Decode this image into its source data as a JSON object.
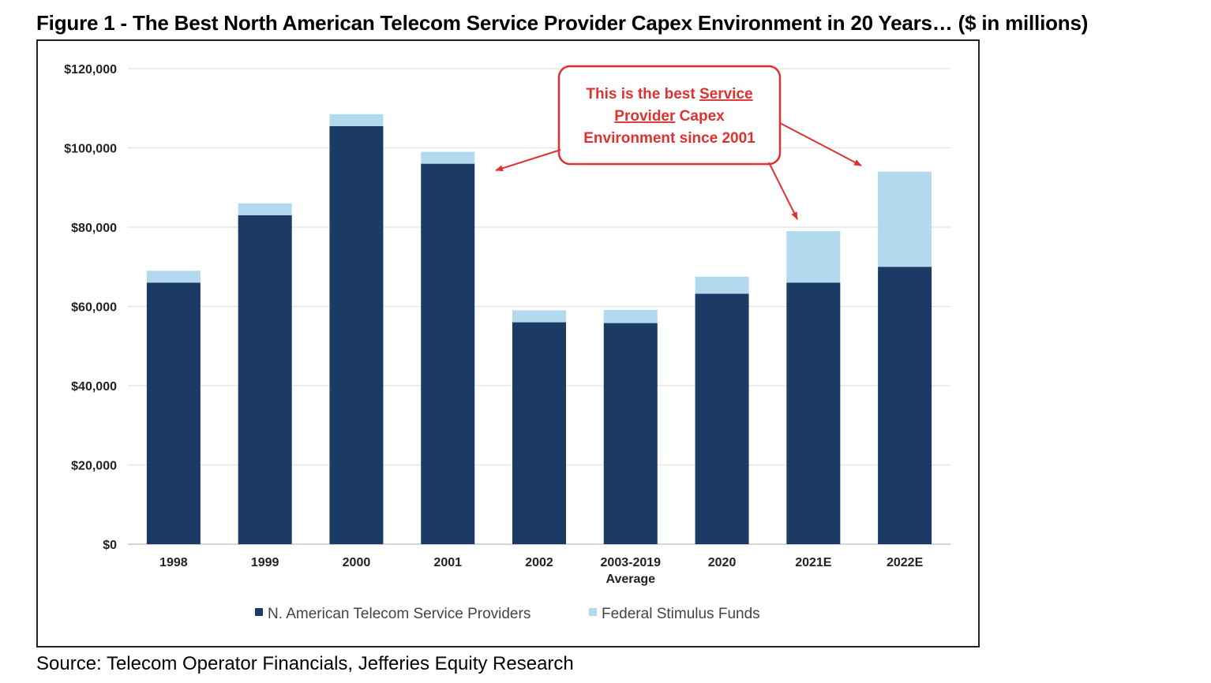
{
  "title": "Figure 1 - The Best North American Telecom Service Provider Capex Environment in 20 Years… ($ in millions)",
  "source": "Source: Telecom Operator Financials, Jefferies Equity Research",
  "chart_data": {
    "type": "bar",
    "stacked": true,
    "categories": [
      "1998",
      "1999",
      "2000",
      "2001",
      "2002",
      "2003-2019 Average",
      "2020",
      "2021E",
      "2022E"
    ],
    "category_lines": [
      [
        "1998"
      ],
      [
        "1999"
      ],
      [
        "2000"
      ],
      [
        "2001"
      ],
      [
        "2002"
      ],
      [
        "2003-2019",
        "Average"
      ],
      [
        "2020"
      ],
      [
        "2021E"
      ],
      [
        "2022E"
      ]
    ],
    "series": [
      {
        "name": "N. American Telecom Service Providers",
        "color": "#1b3a66",
        "values": [
          66000,
          83000,
          105500,
          96000,
          56000,
          55800,
          63200,
          66000,
          70000
        ]
      },
      {
        "name": "Federal Stimulus Funds",
        "color": "#b3d9ee",
        "values": [
          3000,
          3000,
          3000,
          3000,
          3000,
          3300,
          4300,
          13000,
          24000
        ]
      }
    ],
    "ylim": [
      0,
      120000
    ],
    "yticks": [
      0,
      20000,
      40000,
      60000,
      80000,
      100000,
      120000
    ],
    "ytick_labels": [
      "$0",
      "$20,000",
      "$40,000",
      "$60,000",
      "$80,000",
      "$100,000",
      "$120,000"
    ],
    "grid": true,
    "legend_position": "bottom",
    "annotation": {
      "lines": [
        [
          {
            "text": "This is the best ",
            "underline": false
          },
          {
            "text": "Service",
            "underline": true
          }
        ],
        [
          {
            "text": "Provider",
            "underline": true
          },
          {
            "text": " Capex",
            "underline": false
          }
        ],
        [
          {
            "text": "Environment since 2001",
            "underline": false
          }
        ]
      ],
      "color": "#e03030"
    }
  }
}
